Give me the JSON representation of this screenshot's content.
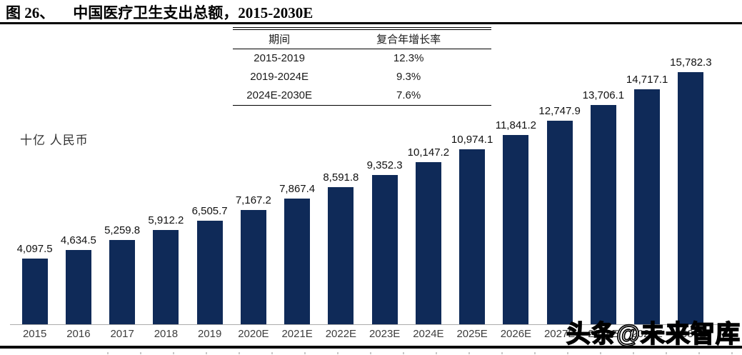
{
  "title": {
    "prefix": "图 26、",
    "text": "中国医疗卫生支出总额，2015-2030E"
  },
  "unit_label": "十亿 人民币",
  "cagr_table": {
    "headers": [
      "期间",
      "复合年增长率"
    ],
    "rows": [
      {
        "period": "2015-2019",
        "cagr": "12.3%"
      },
      {
        "period": "2019-2024E",
        "cagr": "9.3%"
      },
      {
        "period": "2024E-2030E",
        "cagr": "7.6%"
      }
    ]
  },
  "chart_data": {
    "type": "bar",
    "title": "中国医疗卫生支出总额，2015-2030E",
    "xlabel": "",
    "ylabel": "十亿 人民币",
    "categories": [
      "2015",
      "2016",
      "2017",
      "2018",
      "2019",
      "2020E",
      "2021E",
      "2022E",
      "2023E",
      "2024E",
      "2025E",
      "2026E",
      "2027E",
      "2028E",
      "2029E",
      "2030E"
    ],
    "values": [
      4097.5,
      4634.5,
      5259.8,
      5912.2,
      6505.7,
      7167.2,
      7867.4,
      8591.8,
      9352.3,
      10147.2,
      10974.1,
      11841.2,
      12747.9,
      13706.1,
      14717.1,
      15782.3
    ],
    "value_labels": [
      "4,097.5",
      "4,634.5",
      "5,259.8",
      "5,912.2",
      "6,505.7",
      "7,167.2",
      "7,867.4",
      "8,591.8",
      "9,352.3",
      "10,147.2",
      "10,974.1",
      "11,841.2",
      "12,747.9",
      "13,706.1",
      "14,717.1",
      "15,782.3"
    ],
    "ylim": [
      0,
      16500
    ],
    "grid": false,
    "legend": "none",
    "bar_color": "#0f2a58"
  },
  "watermark": "头条@未来智库",
  "colors": {
    "bar": "#0f2a58",
    "axis_line": "#ababab",
    "title_text": "#000000",
    "value_label_text": "#111111",
    "axis_label_text": "#3d3d3d"
  }
}
